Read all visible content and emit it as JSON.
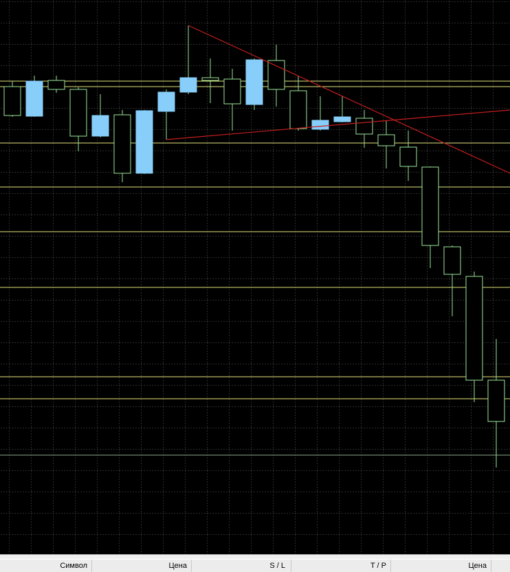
{
  "chart_data": {
    "type": "candlestick",
    "ylim": [
      0,
      805
    ],
    "bull_color": "#87cefa",
    "bear_color": "#000000",
    "outline_color": "#9be89b",
    "open": [
      679,
      636,
      688,
      675,
      607,
      638,
      553,
      643,
      671,
      692,
      690,
      653,
      717,
      673,
      617,
      628,
      633,
      609,
      591,
      562,
      446,
      403,
      252
    ],
    "high": [
      687,
      695,
      695,
      678,
      668,
      645,
      645,
      675,
      768,
      720,
      705,
      720,
      740,
      695,
      665,
      665,
      645,
      630,
      615,
      563,
      448,
      410,
      312
    ],
    "low": [
      635,
      635,
      670,
      585,
      605,
      540,
      552,
      602,
      668,
      655,
      615,
      645,
      650,
      615,
      615,
      627,
      590,
      560,
      542,
      415,
      345,
      220,
      125
    ],
    "close": [
      637,
      687,
      675,
      607,
      637,
      553,
      644,
      671,
      692,
      688,
      654,
      718,
      675,
      618,
      630,
      635,
      610,
      593,
      563,
      448,
      406,
      252,
      192
    ],
    "levels": [
      687,
      679,
      597,
      533,
      468,
      387,
      257,
      225
    ],
    "level_color": "#e6e67a",
    "weak_levels": [
      143
    ],
    "weak_level_color": "#8aa88a",
    "trendlines": [
      {
        "from": [
          8,
          768
        ],
        "to": [
          22.625,
          553
        ]
      },
      {
        "from": [
          7,
          602
        ],
        "to": [
          22.625,
          645
        ]
      }
    ],
    "trendline_color": "#c81e1e"
  },
  "terminal": {
    "columns": [
      "Символ",
      "Цена",
      "S / L",
      "T / P",
      "Цена"
    ]
  }
}
